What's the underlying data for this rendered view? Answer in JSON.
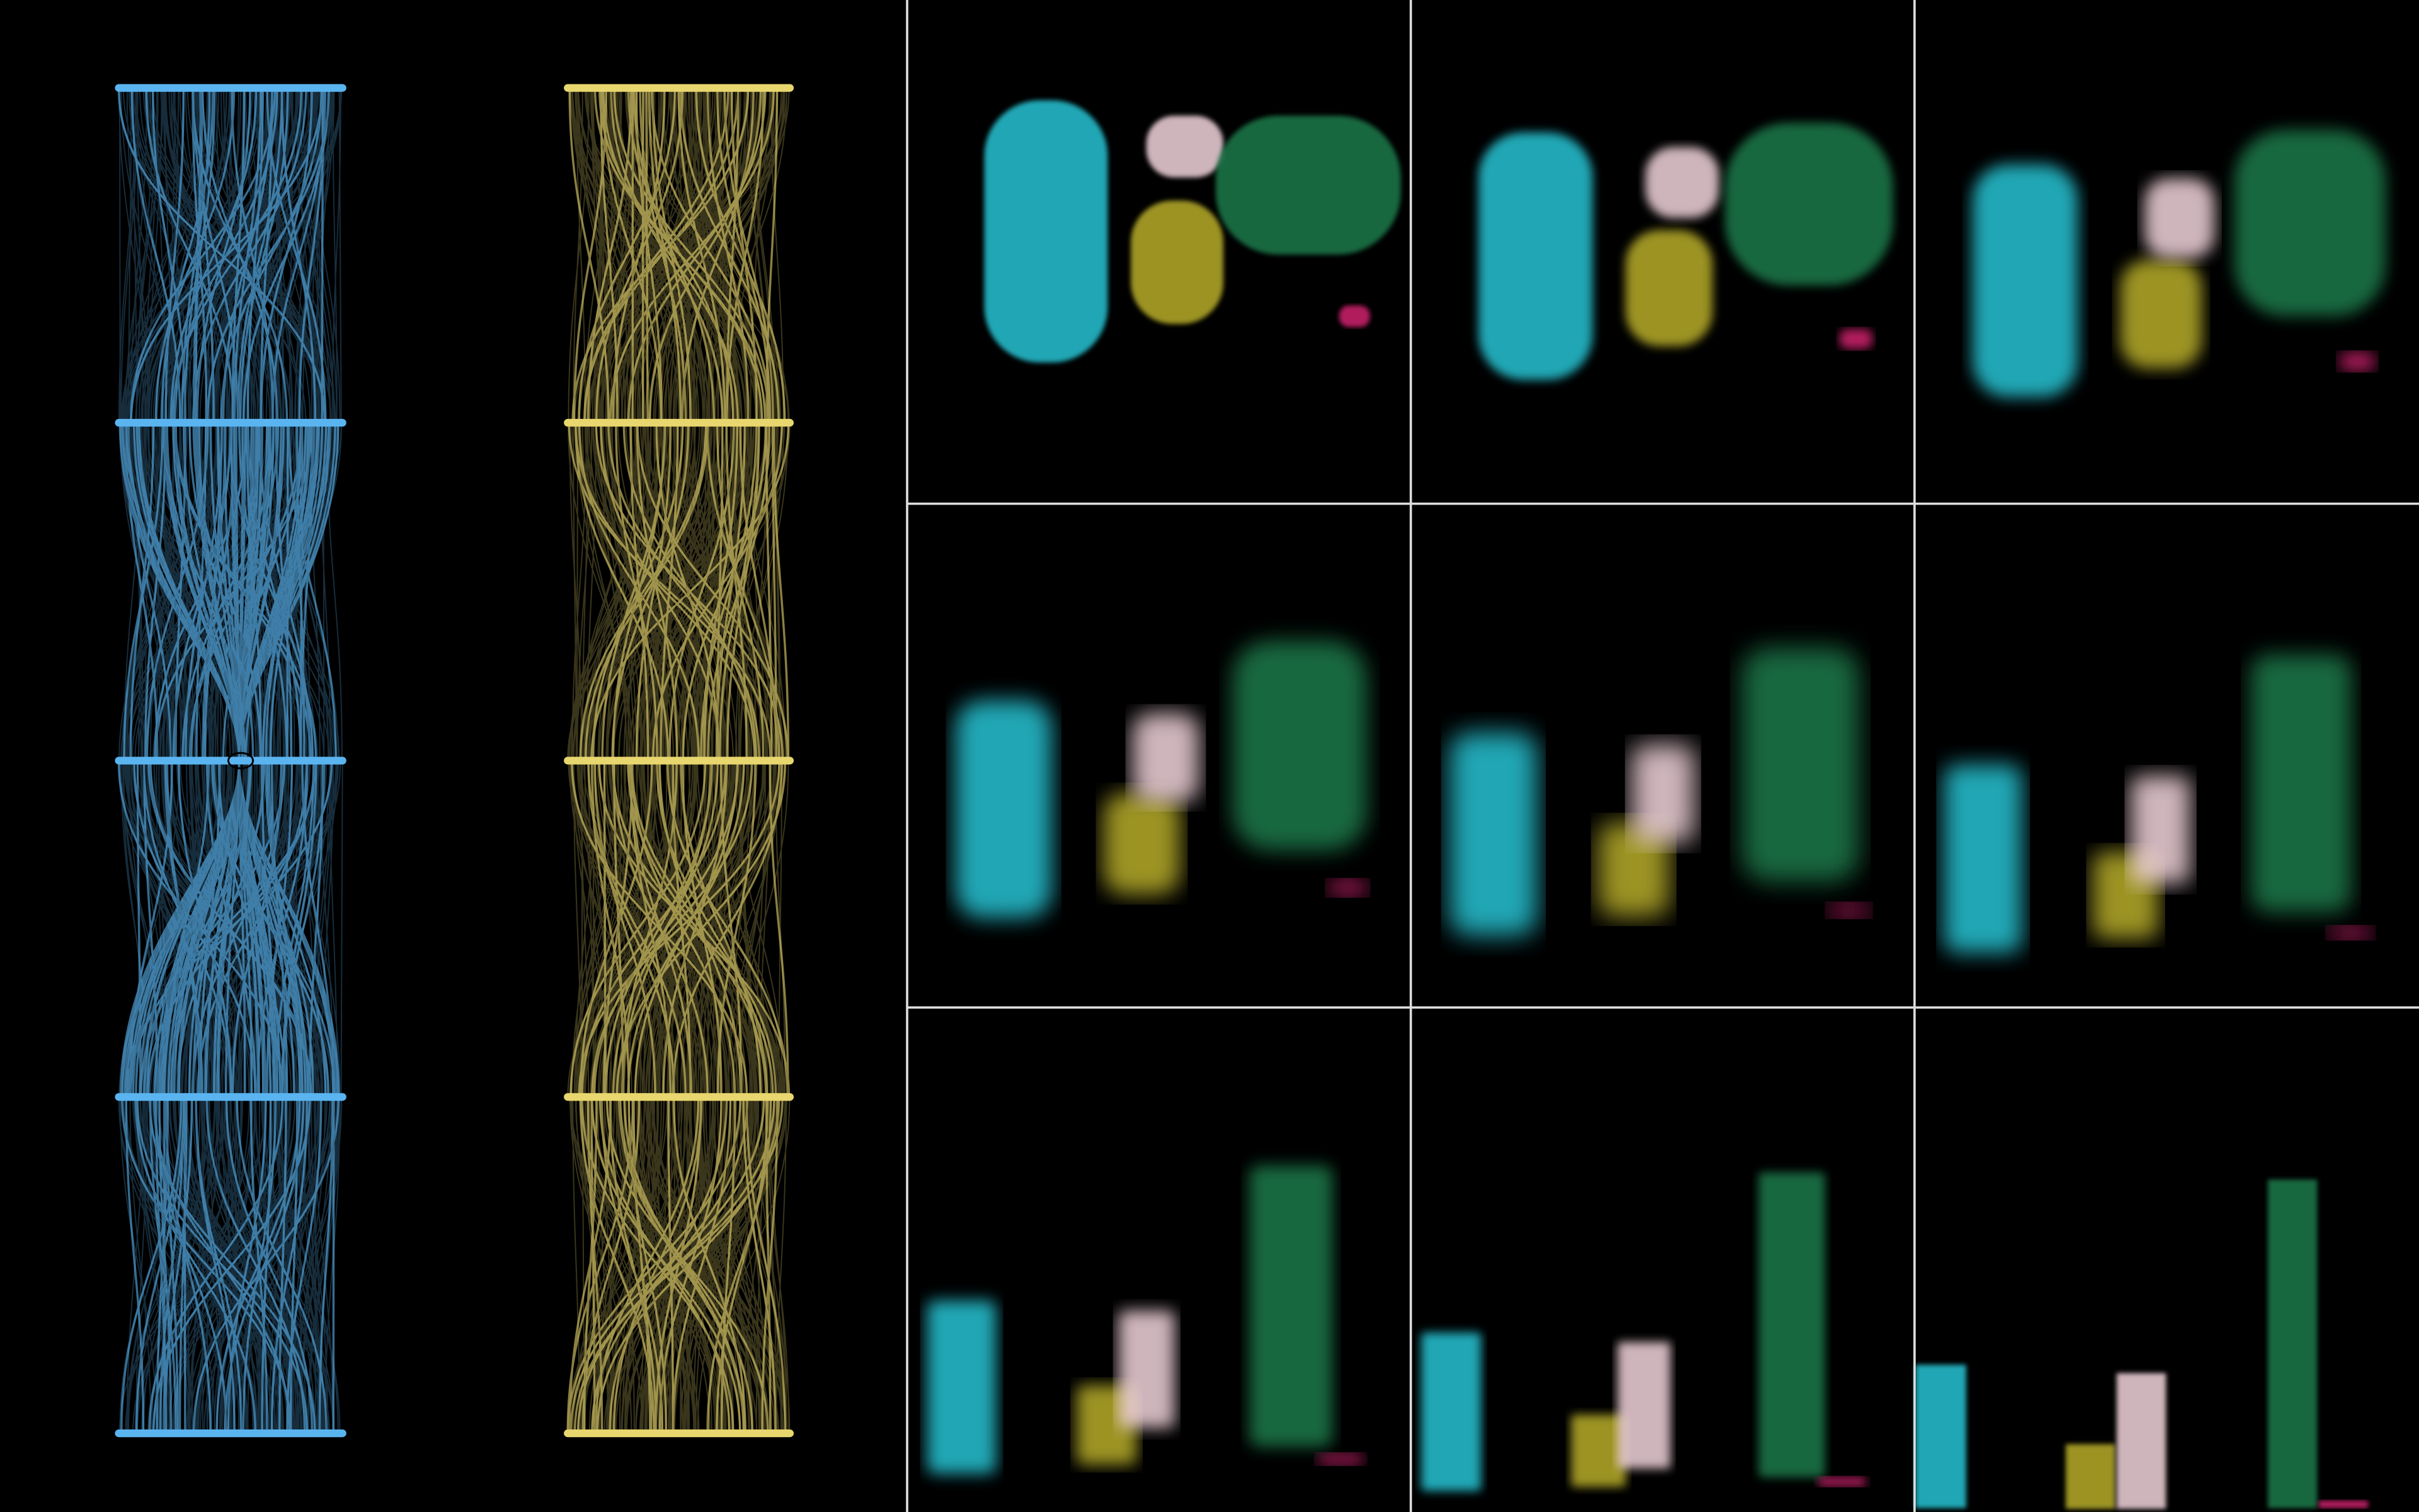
{
  "parallel_axes": [
    {
      "color": "#5ab4f0"
    },
    {
      "color": "#e8d66e"
    }
  ],
  "regions": [
    {
      "color": "#27c4d4"
    },
    {
      "color": "#b8ad2a"
    },
    {
      "color": "#f2d4dc"
    },
    {
      "color": "#1f7a4c"
    },
    {
      "color": "#d0206e"
    }
  ]
}
